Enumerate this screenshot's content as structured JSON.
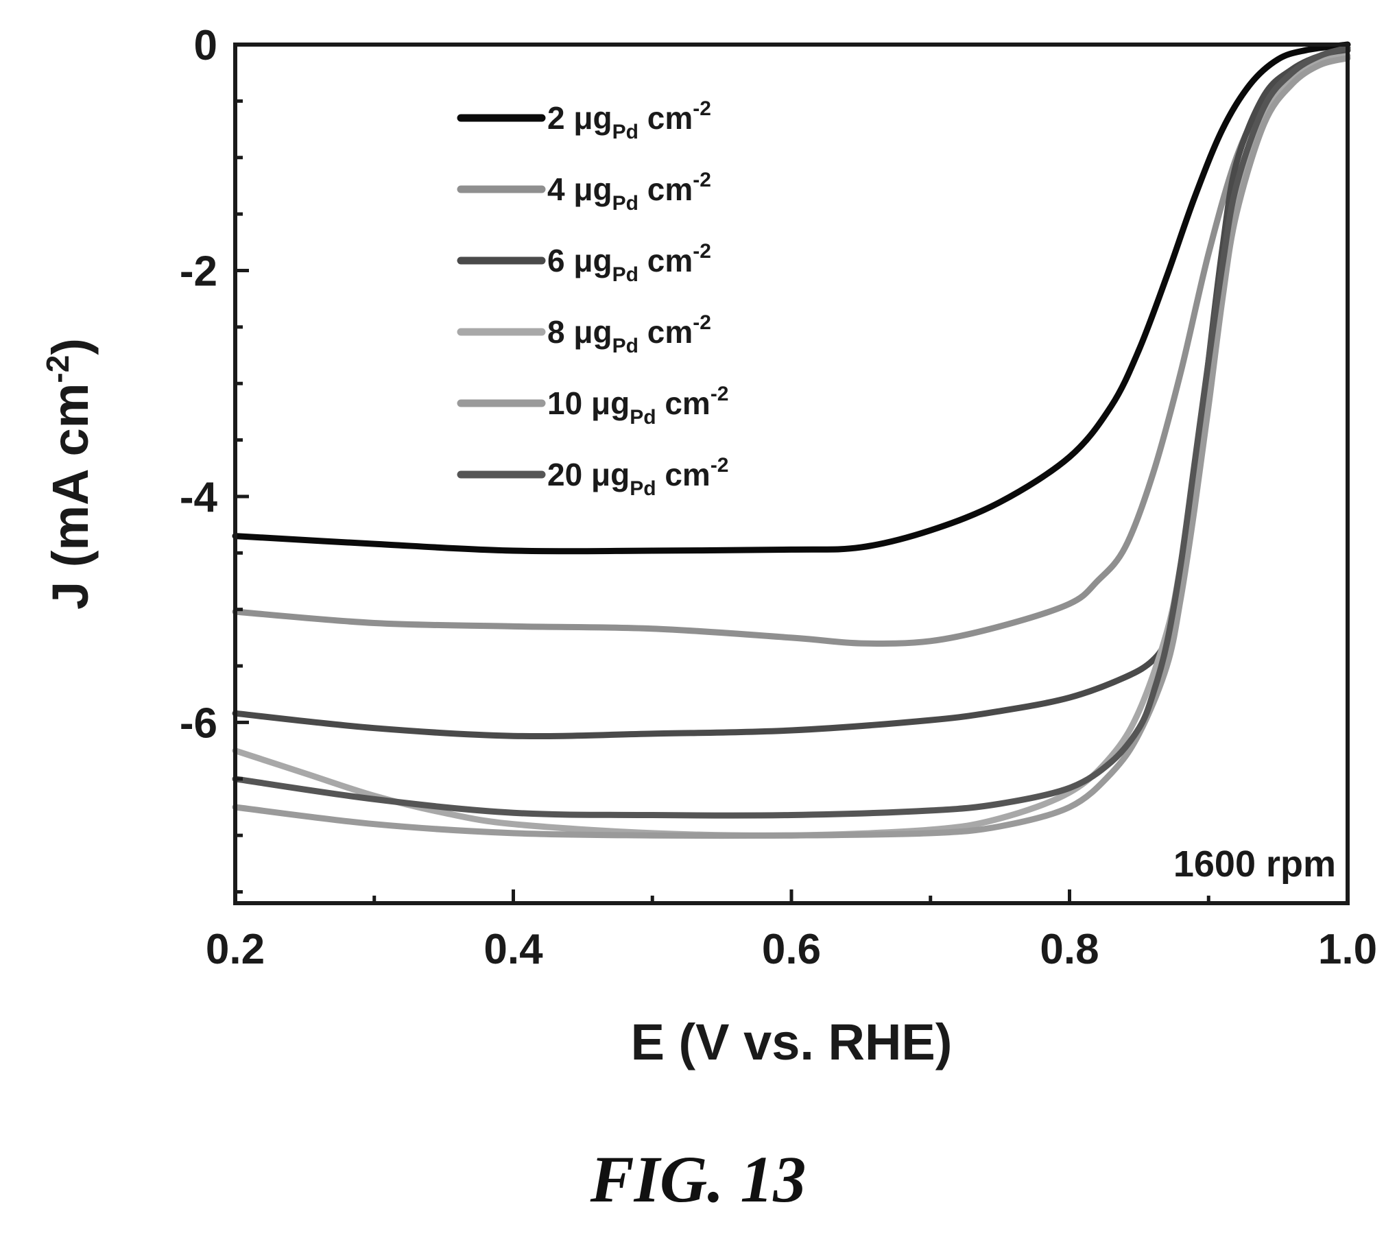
{
  "chart_data": {
    "type": "line",
    "xlabel": "E (V vs. RHE)",
    "ylabel": "J (mA cm",
    "ylabel_sup": "-2",
    "ylabel_close": ")",
    "xlim": [
      0.2,
      1.0
    ],
    "ylim": [
      -7.6,
      0
    ],
    "xticks": [
      0.2,
      0.4,
      0.6,
      0.8,
      1.0
    ],
    "xtick_labels": [
      "0.2",
      "0.4",
      "0.6",
      "0.8",
      "1.0"
    ],
    "yticks": [
      0,
      -2,
      -4,
      -6
    ],
    "ytick_labels": [
      "0",
      "-2",
      "-4",
      "-6"
    ],
    "grid": false,
    "legend_position": "top-left",
    "annotation": "1600 rpm",
    "series": [
      {
        "name": "2 μgPd cm-2",
        "legend": {
          "pre": "2 μg",
          "sub": "Pd",
          "mid": " cm",
          "sup": "-2"
        },
        "color": "#0a0a0a",
        "x": [
          0.2,
          0.3,
          0.4,
          0.5,
          0.6,
          0.65,
          0.7,
          0.75,
          0.8,
          0.83,
          0.85,
          0.87,
          0.89,
          0.91,
          0.93,
          0.95,
          0.97,
          1.0
        ],
        "y": [
          -4.35,
          -4.42,
          -4.48,
          -4.48,
          -4.47,
          -4.45,
          -4.3,
          -4.05,
          -3.65,
          -3.2,
          -2.7,
          -2.05,
          -1.35,
          -0.75,
          -0.35,
          -0.13,
          -0.05,
          0.0
        ]
      },
      {
        "name": "4 μgPd cm-2",
        "legend": {
          "pre": "4 μg",
          "sub": "Pd",
          "mid": " cm",
          "sup": "-2"
        },
        "color": "#8f8f8f",
        "x": [
          0.2,
          0.3,
          0.4,
          0.5,
          0.6,
          0.65,
          0.7,
          0.75,
          0.8,
          0.82,
          0.84,
          0.86,
          0.88,
          0.9,
          0.92,
          0.94,
          0.96,
          0.98,
          1.0
        ],
        "y": [
          -5.02,
          -5.12,
          -5.15,
          -5.17,
          -5.25,
          -5.3,
          -5.28,
          -5.15,
          -4.95,
          -4.75,
          -4.45,
          -3.8,
          -2.9,
          -1.85,
          -1.0,
          -0.5,
          -0.25,
          -0.12,
          -0.05
        ]
      },
      {
        "name": "6 μgPd cm-2",
        "legend": {
          "pre": "6 μg",
          "sub": "Pd",
          "mid": " cm",
          "sup": "-2"
        },
        "color": "#4a4a4a",
        "x": [
          0.2,
          0.3,
          0.4,
          0.5,
          0.6,
          0.7,
          0.75,
          0.8,
          0.84,
          0.86,
          0.87,
          0.88,
          0.89,
          0.9,
          0.91,
          0.92,
          0.94,
          0.96,
          0.98,
          1.0
        ],
        "y": [
          -5.92,
          -6.05,
          -6.12,
          -6.1,
          -6.07,
          -5.98,
          -5.9,
          -5.78,
          -5.6,
          -5.45,
          -5.25,
          -4.8,
          -3.9,
          -2.8,
          -1.8,
          -1.05,
          -0.45,
          -0.22,
          -0.1,
          -0.05
        ]
      },
      {
        "name": "8 μgPd cm-2",
        "legend": {
          "pre": "8 μg",
          "sub": "Pd",
          "mid": " cm",
          "sup": "-2"
        },
        "color": "#a8a8a8",
        "x": [
          0.2,
          0.25,
          0.3,
          0.35,
          0.4,
          0.5,
          0.6,
          0.7,
          0.75,
          0.8,
          0.83,
          0.85,
          0.87,
          0.88,
          0.89,
          0.9,
          0.91,
          0.92,
          0.94,
          0.96,
          0.98,
          1.0
        ],
        "y": [
          -6.25,
          -6.45,
          -6.65,
          -6.8,
          -6.9,
          -6.98,
          -7.0,
          -6.95,
          -6.85,
          -6.62,
          -6.3,
          -5.9,
          -5.2,
          -4.6,
          -3.8,
          -2.9,
          -2.0,
          -1.3,
          -0.6,
          -0.3,
          -0.15,
          -0.1
        ]
      },
      {
        "name": "10 μgPd cm-2",
        "legend": {
          "pre": "10 μg",
          "sub": "Pd",
          "mid": " cm",
          "sup": "-2"
        },
        "color": "#9a9a9a",
        "x": [
          0.2,
          0.3,
          0.4,
          0.5,
          0.6,
          0.7,
          0.75,
          0.8,
          0.83,
          0.85,
          0.87,
          0.88,
          0.89,
          0.9,
          0.91,
          0.92,
          0.94,
          0.96,
          0.98,
          1.0
        ],
        "y": [
          -6.75,
          -6.9,
          -6.98,
          -7.0,
          -7.0,
          -6.98,
          -6.92,
          -6.75,
          -6.45,
          -6.1,
          -5.5,
          -4.9,
          -4.1,
          -3.2,
          -2.25,
          -1.5,
          -0.7,
          -0.35,
          -0.18,
          -0.12
        ]
      },
      {
        "name": "20 μgPd cm-2",
        "legend": {
          "pre": "20 μg",
          "sub": "Pd",
          "mid": " cm",
          "sup": "-2"
        },
        "color": "#555555",
        "x": [
          0.2,
          0.3,
          0.4,
          0.5,
          0.6,
          0.7,
          0.75,
          0.8,
          0.83,
          0.85,
          0.86,
          0.87,
          0.88,
          0.89,
          0.9,
          0.91,
          0.92,
          0.94,
          0.96,
          0.98,
          1.0
        ],
        "y": [
          -6.5,
          -6.68,
          -6.8,
          -6.82,
          -6.82,
          -6.78,
          -6.72,
          -6.58,
          -6.35,
          -6.05,
          -5.75,
          -5.3,
          -4.6,
          -3.7,
          -2.8,
          -1.95,
          -1.25,
          -0.55,
          -0.25,
          -0.1,
          -0.03
        ]
      }
    ]
  },
  "figure_label": "FIG. 13"
}
